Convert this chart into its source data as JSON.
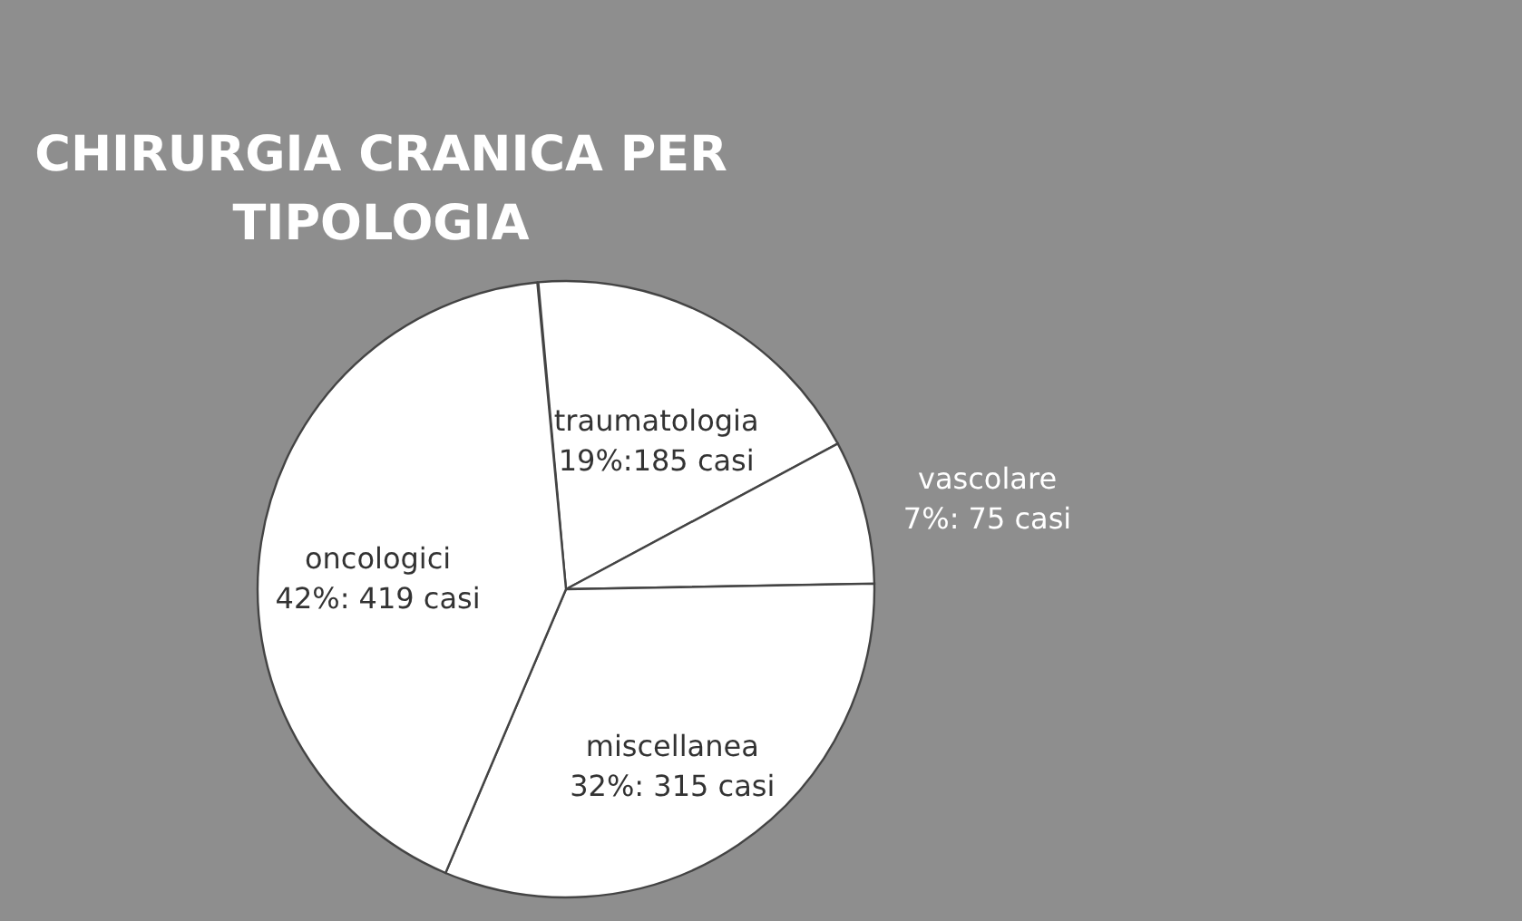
{
  "chart_data": {
    "type": "pie",
    "title": "CHIRURGIA CRANICA PER TIPOLOGIA",
    "categories": [
      "traumatologia",
      "vascolare",
      "miscellanea",
      "oncologici"
    ],
    "values": [
      185,
      75,
      315,
      419
    ],
    "value_labels": [
      "19%:185 casi",
      "7%: 75 casi",
      "32%: 315 casi",
      "42%: 419 casi"
    ],
    "colors": [
      "#ffffff",
      "#ffffff",
      "#ffffff",
      "#ffffff"
    ],
    "legend": false
  }
}
